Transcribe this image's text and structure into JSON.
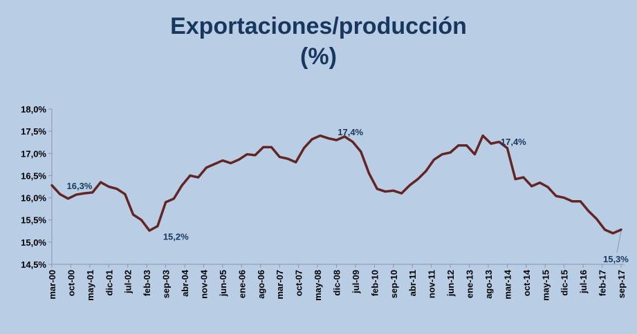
{
  "chart_data": {
    "type": "line",
    "title": "Exportaciones/producción",
    "subtitle": "(%)",
    "xlabel": "",
    "ylabel": "",
    "ylim": [
      14.5,
      18.0
    ],
    "yticks": [
      "14,5%",
      "15,0%",
      "15,5%",
      "16,0%",
      "16,5%",
      "17,0%",
      "17,5%",
      "18,0%"
    ],
    "ytick_values": [
      14.5,
      15.0,
      15.5,
      16.0,
      16.5,
      17.0,
      17.5,
      18.0
    ],
    "grid": false,
    "legend": "none",
    "line_color": "#632523",
    "x_tick_labels": [
      "mar-00",
      "oct-00",
      "may-01",
      "dic-01",
      "jul-02",
      "feb-03",
      "sep-03",
      "abr-04",
      "nov-04",
      "jun-05",
      "ene-06",
      "ago-06",
      "mar-07",
      "oct-07",
      "may-08",
      "dic-08",
      "jul-09",
      "feb-10",
      "sep-10",
      "abr-11",
      "nov-11",
      "jun-12",
      "ene-13",
      "ago-13",
      "mar-14",
      "oct-14",
      "may-15",
      "dic-15",
      "jul-16",
      "feb-17",
      "sep-17"
    ],
    "series": [
      {
        "values": [
          16.28,
          16.08,
          15.98,
          16.07,
          16.1,
          16.12,
          16.35,
          16.25,
          16.2,
          16.08,
          15.62,
          15.5,
          15.26,
          15.36,
          15.9,
          15.98,
          16.28,
          16.5,
          16.46,
          16.68,
          16.76,
          16.84,
          16.78,
          16.86,
          16.98,
          16.96,
          17.14,
          17.14,
          16.92,
          16.88,
          16.8,
          17.12,
          17.32,
          17.4,
          17.34,
          17.3,
          17.38,
          17.26,
          17.04,
          16.55,
          16.2,
          16.14,
          16.16,
          16.1,
          16.28,
          16.42,
          16.6,
          16.86,
          16.98,
          17.02,
          17.18,
          17.18,
          16.98,
          17.4,
          17.22,
          17.26,
          17.12,
          16.42,
          16.46,
          16.26,
          16.34,
          16.24,
          16.04,
          16.0,
          15.92,
          15.92,
          15.7,
          15.52,
          15.28,
          15.2,
          15.28
        ]
      }
    ],
    "annotations": [
      {
        "text": "16,3%",
        "index": 2
      },
      {
        "text": "15,2%",
        "index": 13
      },
      {
        "text": "17,4%",
        "index": 36
      },
      {
        "text": "17,4%",
        "index": 54
      },
      {
        "text": "15,3%",
        "index": 70
      }
    ]
  }
}
